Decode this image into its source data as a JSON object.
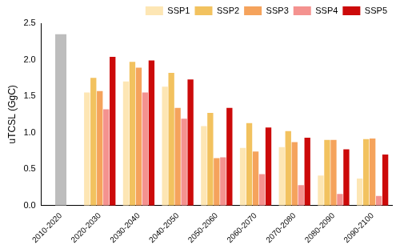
{
  "chart_data": {
    "type": "bar",
    "y_label": "uTCSL (GgC)",
    "categories": [
      "2010-2020",
      "2020-2030",
      "2030-2040",
      "2040-2050",
      "2050-2060",
      "2060-2070",
      "2070-2080",
      "2080-2090",
      "2090-2100"
    ],
    "series": [
      {
        "color": "#bdbdbd",
        "values": [
          2.35,
          null,
          null,
          null,
          null,
          null,
          null,
          null,
          null
        ]
      },
      {
        "name": "SSP1",
        "color": "#fde6b4",
        "values": [
          null,
          1.55,
          1.7,
          1.63,
          1.09,
          0.79,
          0.8,
          0.41,
          0.37
        ]
      },
      {
        "name": "SSP2",
        "color": "#f2c25f",
        "values": [
          null,
          1.75,
          1.97,
          1.82,
          1.27,
          1.13,
          1.02,
          0.9,
          0.91
        ]
      },
      {
        "name": "SSP3",
        "color": "#f5a35c",
        "values": [
          null,
          1.57,
          1.89,
          1.34,
          0.65,
          0.74,
          0.87,
          0.9,
          0.92
        ]
      },
      {
        "name": "SSP4",
        "color": "#f4928f",
        "values": [
          null,
          1.32,
          1.55,
          1.19,
          0.66,
          0.43,
          0.28,
          0.16,
          0.13
        ]
      },
      {
        "name": "SSP5",
        "color": "#cc0a0a",
        "values": [
          null,
          2.04,
          1.99,
          1.73,
          1.34,
          1.07,
          0.93,
          0.77,
          0.7
        ]
      }
    ],
    "ylim": [
      0,
      2.5
    ],
    "yticks": [
      {
        "value": 0,
        "label": "0.0"
      },
      0.5,
      {
        "value": 1,
        "label": "1.0"
      },
      1.5,
      {
        "value": 2,
        "label": "2.0"
      },
      2.5
    ],
    "grid": false,
    "legend": "upper right"
  }
}
